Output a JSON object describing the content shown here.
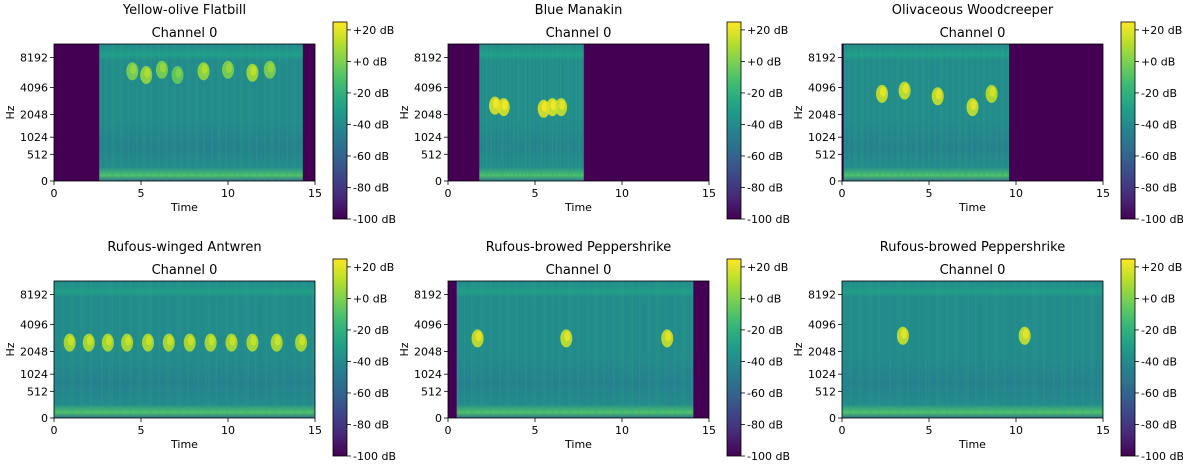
{
  "figure": {
    "colormap": [
      "#440154",
      "#482878",
      "#3e4989",
      "#31688e",
      "#26828e",
      "#1f9e89",
      "#35b779",
      "#6ece58",
      "#b5de2b",
      "#fde725"
    ]
  },
  "chart_data": [
    {
      "type": "heatmap",
      "title": "Yellow-olive Flatbill",
      "subtitle": "Channel 0",
      "xlabel": "Time",
      "ylabel": "Hz",
      "xlim": [
        0,
        15
      ],
      "x_ticks": [
        0,
        5,
        10,
        15
      ],
      "y_tick_labels": [
        "0",
        "512",
        "1024",
        "2048",
        "4096",
        "8192"
      ],
      "colorbar_ticks": [
        "+20 dB",
        "+0 dB",
        "-20 dB",
        "-40 dB",
        "-60 dB",
        "-80 dB",
        "-100 dB"
      ],
      "colorbar_range_db": [
        -100,
        25
      ],
      "signal_span_s": [
        2.6,
        14.3
      ],
      "calls": [
        {
          "t": 4.5,
          "hz": 6000,
          "db": 0
        },
        {
          "t": 5.3,
          "hz": 5500,
          "db": 5
        },
        {
          "t": 6.2,
          "hz": 6200,
          "db": 0
        },
        {
          "t": 7.1,
          "hz": 5500,
          "db": -5
        },
        {
          "t": 8.6,
          "hz": 6000,
          "db": 5
        },
        {
          "t": 10.0,
          "hz": 6200,
          "db": 0
        },
        {
          "t": 11.4,
          "hz": 5800,
          "db": 8
        },
        {
          "t": 12.4,
          "hz": 6200,
          "db": 0
        }
      ]
    },
    {
      "type": "heatmap",
      "title": "Blue Manakin",
      "subtitle": "Channel 0",
      "xlabel": "Time",
      "ylabel": "Hz",
      "xlim": [
        0,
        15
      ],
      "x_ticks": [
        0,
        5,
        10,
        15
      ],
      "y_tick_labels": [
        "0",
        "512",
        "1024",
        "2048",
        "4096",
        "8192"
      ],
      "colorbar_ticks": [
        "+20 dB",
        "+0 dB",
        "-20 dB",
        "-40 dB",
        "-60 dB",
        "-80 dB",
        "-100 dB"
      ],
      "colorbar_range_db": [
        -100,
        25
      ],
      "signal_span_s": [
        1.8,
        7.8
      ],
      "calls": [
        {
          "t": 2.7,
          "hz": 2600,
          "db": 18
        },
        {
          "t": 3.2,
          "hz": 2500,
          "db": 18
        },
        {
          "t": 5.5,
          "hz": 2400,
          "db": 18
        },
        {
          "t": 6.0,
          "hz": 2500,
          "db": 18
        },
        {
          "t": 6.5,
          "hz": 2500,
          "db": 15
        }
      ]
    },
    {
      "type": "heatmap",
      "title": "Olivaceous Woodcreeper",
      "subtitle": "Channel 0",
      "xlabel": "Time",
      "ylabel": "Hz",
      "xlim": [
        0,
        15
      ],
      "x_ticks": [
        0,
        5,
        10,
        15
      ],
      "y_tick_labels": [
        "0",
        "512",
        "1024",
        "2048",
        "4096",
        "8192"
      ],
      "colorbar_ticks": [
        "+20 dB",
        "+0 dB",
        "-20 dB",
        "-40 dB",
        "-60 dB",
        "-80 dB",
        "-100 dB"
      ],
      "colorbar_range_db": [
        -100,
        25
      ],
      "signal_span_s": [
        0.1,
        9.6
      ],
      "calls": [
        {
          "t": 2.3,
          "hz": 3500,
          "db": 15
        },
        {
          "t": 3.6,
          "hz": 3800,
          "db": 15
        },
        {
          "t": 5.5,
          "hz": 3300,
          "db": 15
        },
        {
          "t": 7.5,
          "hz": 2500,
          "db": 15
        },
        {
          "t": 8.6,
          "hz": 3500,
          "db": 12
        }
      ]
    },
    {
      "type": "heatmap",
      "title": "Rufous-winged Antwren",
      "subtitle": "Channel 0",
      "xlabel": "Time",
      "ylabel": "Hz",
      "xlim": [
        0,
        15
      ],
      "x_ticks": [
        0,
        5,
        10,
        15
      ],
      "y_tick_labels": [
        "0",
        "512",
        "1024",
        "2048",
        "4096",
        "8192"
      ],
      "colorbar_ticks": [
        "+20 dB",
        "+0 dB",
        "-20 dB",
        "-40 dB",
        "-60 dB",
        "-80 dB",
        "-100 dB"
      ],
      "colorbar_range_db": [
        -100,
        25
      ],
      "signal_span_s": [
        0,
        15
      ],
      "calls": [
        {
          "t": 0.9,
          "hz": 2600,
          "db": 10
        },
        {
          "t": 2.0,
          "hz": 2600,
          "db": 10
        },
        {
          "t": 3.1,
          "hz": 2600,
          "db": 10
        },
        {
          "t": 4.2,
          "hz": 2600,
          "db": 10
        },
        {
          "t": 5.4,
          "hz": 2600,
          "db": 10
        },
        {
          "t": 6.6,
          "hz": 2600,
          "db": 10
        },
        {
          "t": 7.8,
          "hz": 2600,
          "db": 10
        },
        {
          "t": 9.0,
          "hz": 2600,
          "db": 10
        },
        {
          "t": 10.2,
          "hz": 2600,
          "db": 10
        },
        {
          "t": 11.4,
          "hz": 2600,
          "db": 10
        },
        {
          "t": 12.8,
          "hz": 2600,
          "db": 10
        },
        {
          "t": 14.2,
          "hz": 2600,
          "db": 10
        }
      ]
    },
    {
      "type": "heatmap",
      "title": "Rufous-browed Peppershrike",
      "subtitle": "Channel 0",
      "xlabel": "Time",
      "ylabel": "Hz",
      "xlim": [
        0,
        15
      ],
      "x_ticks": [
        0,
        5,
        10,
        15
      ],
      "y_tick_labels": [
        "0",
        "512",
        "1024",
        "2048",
        "4096",
        "8192"
      ],
      "colorbar_ticks": [
        "+20 dB",
        "+0 dB",
        "-20 dB",
        "-40 dB",
        "-60 dB",
        "-80 dB",
        "-100 dB"
      ],
      "colorbar_range_db": [
        -100,
        25
      ],
      "signal_span_s": [
        0.5,
        14.1
      ],
      "calls": [
        {
          "t": 1.7,
          "hz": 2900,
          "db": 15
        },
        {
          "t": 6.8,
          "hz": 2900,
          "db": 15
        },
        {
          "t": 12.6,
          "hz": 2900,
          "db": 15
        }
      ]
    },
    {
      "type": "heatmap",
      "title": "Rufous-browed Peppershrike",
      "subtitle": "Channel 0",
      "xlabel": "Time",
      "ylabel": "Hz",
      "xlim": [
        0,
        15
      ],
      "x_ticks": [
        0,
        5,
        10,
        15
      ],
      "y_tick_labels": [
        "0",
        "512",
        "1024",
        "2048",
        "4096",
        "8192"
      ],
      "colorbar_ticks": [
        "+20 dB",
        "+0 dB",
        "-20 dB",
        "-40 dB",
        "-60 dB",
        "-80 dB",
        "-100 dB"
      ],
      "colorbar_range_db": [
        -100,
        25
      ],
      "signal_span_s": [
        0,
        15
      ],
      "calls": [
        {
          "t": 3.5,
          "hz": 3100,
          "db": 15
        },
        {
          "t": 10.5,
          "hz": 3100,
          "db": 15
        }
      ]
    }
  ]
}
